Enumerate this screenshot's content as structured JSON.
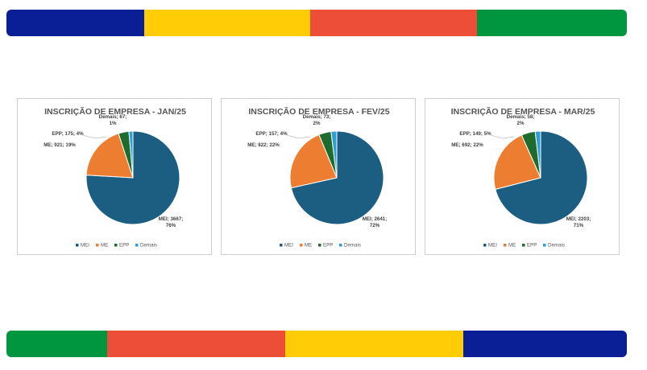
{
  "colors": {
    "stripe_blue": "#0a1f96",
    "stripe_yellow": "#ffcc05",
    "stripe_red": "#ed4e37",
    "stripe_green": "#00953f"
  },
  "stripes": {
    "top": [
      {
        "color": "#0a1f96",
        "fraction": 0.222
      },
      {
        "color": "#ffcc05",
        "fraction": 0.268
      },
      {
        "color": "#ed4e37",
        "fraction": 0.268
      },
      {
        "color": "#00953f",
        "fraction": 0.242
      }
    ],
    "bottom": [
      {
        "color": "#00953f",
        "fraction": 0.162
      },
      {
        "color": "#ed4e37",
        "fraction": 0.287
      },
      {
        "color": "#ffcc05",
        "fraction": 0.287
      },
      {
        "color": "#0a1f96",
        "fraction": 0.264
      }
    ]
  },
  "series_colors": [
    "#1b5e82",
    "#ed7d31",
    "#1e6b2e",
    "#2e9fd6"
  ],
  "chart_data": [
    {
      "type": "pie",
      "title": "INSCRIÇÃO DE EMPRESA - JAN/25",
      "categories": [
        "MEI",
        "ME",
        "EPP",
        "Demais"
      ],
      "values": [
        3667,
        921,
        175,
        67
      ],
      "percents": [
        "76%",
        "19%",
        "4%",
        "1%"
      ],
      "legend": [
        "MEI",
        "ME",
        "EPP",
        "Demais"
      ],
      "legend_position": "bottom",
      "labels": [
        {
          "lines": [
            "MEI; 3667;",
            "76%"
          ]
        },
        {
          "lines": [
            "ME; 921; 19%"
          ]
        },
        {
          "lines": [
            "EPP; 175; 4%"
          ]
        },
        {
          "lines": [
            "Demais; 67;",
            "1%"
          ]
        }
      ]
    },
    {
      "type": "pie",
      "title": "INSCRIÇÃO DE EMPRESA - FEV/25",
      "categories": [
        "MEI",
        "ME",
        "EPP",
        "Demais"
      ],
      "values": [
        2641,
        822,
        157,
        73
      ],
      "percents": [
        "72%",
        "22%",
        "4%",
        "2%"
      ],
      "legend": [
        "MEI",
        "ME",
        "EPP",
        "Demais"
      ],
      "legend_position": "bottom",
      "labels": [
        {
          "lines": [
            "MEI; 2641;",
            "72%"
          ]
        },
        {
          "lines": [
            "ME; 822; 22%"
          ]
        },
        {
          "lines": [
            "EPP; 157; 4%"
          ]
        },
        {
          "lines": [
            "Demais; 73;",
            "2%"
          ]
        }
      ]
    },
    {
      "type": "pie",
      "title": "INSCRIÇÃO DE EMPRESA - MAR/25",
      "categories": [
        "MEI",
        "ME",
        "EPP",
        "Demais"
      ],
      "values": [
        2203,
        692,
        149,
        58
      ],
      "percents": [
        "71%",
        "22%",
        "5%",
        "2%"
      ],
      "legend": [
        "MEI",
        "ME",
        "EPP",
        "Demais"
      ],
      "legend_position": "bottom",
      "labels": [
        {
          "lines": [
            "MEI; 2203;",
            "71%"
          ]
        },
        {
          "lines": [
            "ME; 692; 22%"
          ]
        },
        {
          "lines": [
            "EPP; 149; 5%"
          ]
        },
        {
          "lines": [
            "Demais; 58;",
            "2%"
          ]
        }
      ]
    }
  ]
}
